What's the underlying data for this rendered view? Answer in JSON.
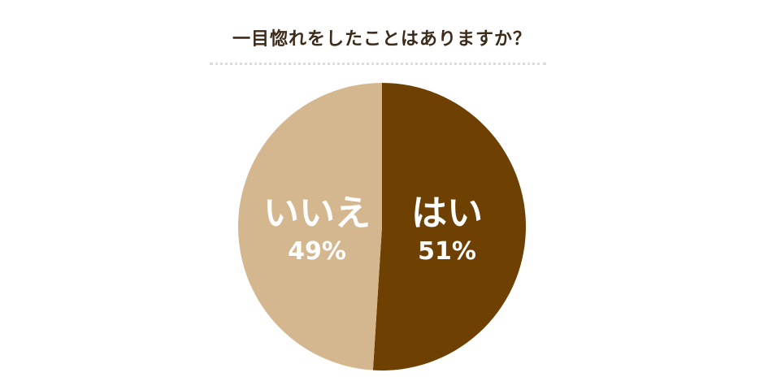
{
  "colors": {
    "yes": "#6e4002",
    "no": "#d4b78f",
    "title": "#3d2b1a"
  },
  "chart_data": {
    "type": "pie",
    "title": "一目惚れをしたことはありますか？",
    "slices": [
      {
        "label": "はい",
        "value": 51,
        "value_label": "51%",
        "color": "#6e4002"
      },
      {
        "label": "いいえ",
        "value": 49,
        "value_label": "49%",
        "color": "#d4b78f"
      }
    ]
  }
}
